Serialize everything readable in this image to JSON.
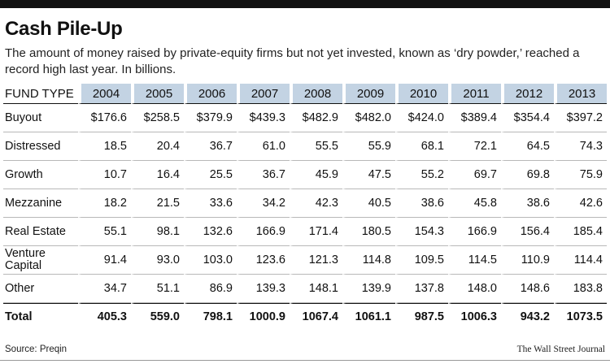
{
  "title": "Cash Pile-Up",
  "subtitle": "The amount of money raised by private-equity firms but not yet invested, known as ‘dry powder,’ reached a record high last year. In billions.",
  "source": "Source: Preqin",
  "credit": "The Wall Street Journal",
  "colors": {
    "header_fill": "#c3d3e3",
    "text": "#111111",
    "row_rule": "#b8b8b8"
  },
  "chart_data": {
    "type": "table",
    "title": "Cash Pile-Up",
    "corner_label": "FUND TYPE",
    "columns": [
      "2004",
      "2005",
      "2006",
      "2007",
      "2008",
      "2009",
      "2010",
      "2011",
      "2012",
      "2013"
    ],
    "rows": [
      {
        "label": "Buyout",
        "values": [
          "$176.6",
          "$258.5",
          "$379.9",
          "$439.3",
          "$482.9",
          "$482.0",
          "$424.0",
          "$389.4",
          "$354.4",
          "$397.2"
        ]
      },
      {
        "label": "Distressed",
        "values": [
          "18.5",
          "20.4",
          "36.7",
          "61.0",
          "55.5",
          "55.9",
          "68.1",
          "72.1",
          "64.5",
          "74.3"
        ]
      },
      {
        "label": "Growth",
        "values": [
          "10.7",
          "16.4",
          "25.5",
          "36.7",
          "45.9",
          "47.5",
          "55.2",
          "69.7",
          "69.8",
          "75.9"
        ]
      },
      {
        "label": "Mezzanine",
        "values": [
          "18.2",
          "21.5",
          "33.6",
          "34.2",
          "42.3",
          "40.5",
          "38.6",
          "45.8",
          "38.6",
          "42.6"
        ]
      },
      {
        "label": "Real Estate",
        "values": [
          "55.1",
          "98.1",
          "132.6",
          "166.9",
          "171.4",
          "180.5",
          "154.3",
          "166.9",
          "156.4",
          "185.4"
        ]
      },
      {
        "label": "Venture Capital",
        "values": [
          "91.4",
          "93.0",
          "103.0",
          "123.6",
          "121.3",
          "114.8",
          "109.5",
          "114.5",
          "110.9",
          "114.4"
        ]
      },
      {
        "label": "Other",
        "values": [
          "34.7",
          "51.1",
          "86.9",
          "139.3",
          "148.1",
          "139.9",
          "137.8",
          "148.0",
          "148.6",
          "183.8"
        ]
      },
      {
        "label": "Total",
        "values": [
          "405.3",
          "559.0",
          "798.1",
          "1000.9",
          "1067.4",
          "1061.1",
          "987.5",
          "1006.3",
          "943.2",
          "1073.5"
        ],
        "bold": true
      }
    ]
  }
}
